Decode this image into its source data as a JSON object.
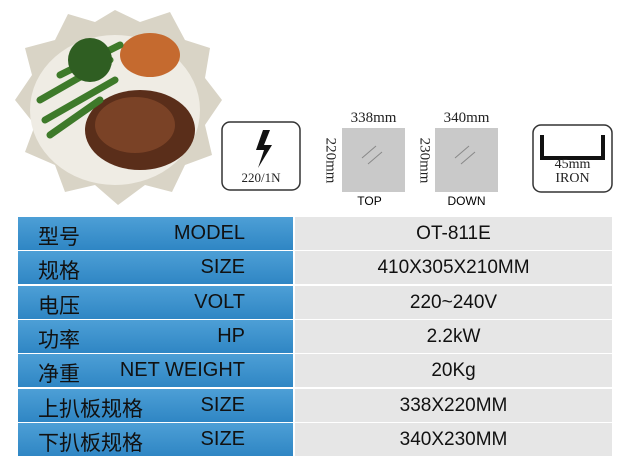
{
  "icons": {
    "power": "220/1N",
    "top_plate": {
      "width": "338mm",
      "depth": "220mm",
      "label": "TOP"
    },
    "down_plate": {
      "width": "340mm",
      "depth": "230mm",
      "label": "DOWN"
    },
    "plate": {
      "thickness": "45mm",
      "material": "IRON"
    }
  },
  "table": {
    "rows": [
      [
        "型号",
        "MODEL",
        "OT-811E"
      ],
      [
        "规格",
        "SIZE",
        "410X305X210MM"
      ],
      [
        "电压",
        "VOLT",
        "220~240V"
      ],
      [
        "功率",
        "HP",
        "2.2kW"
      ],
      [
        "净重",
        "NET WEIGHT",
        "20Kg"
      ],
      [
        "上扒板规格",
        "SIZE",
        "338X220MM"
      ],
      [
        "下扒板规格",
        "SIZE",
        "340X230MM"
      ]
    ]
  }
}
